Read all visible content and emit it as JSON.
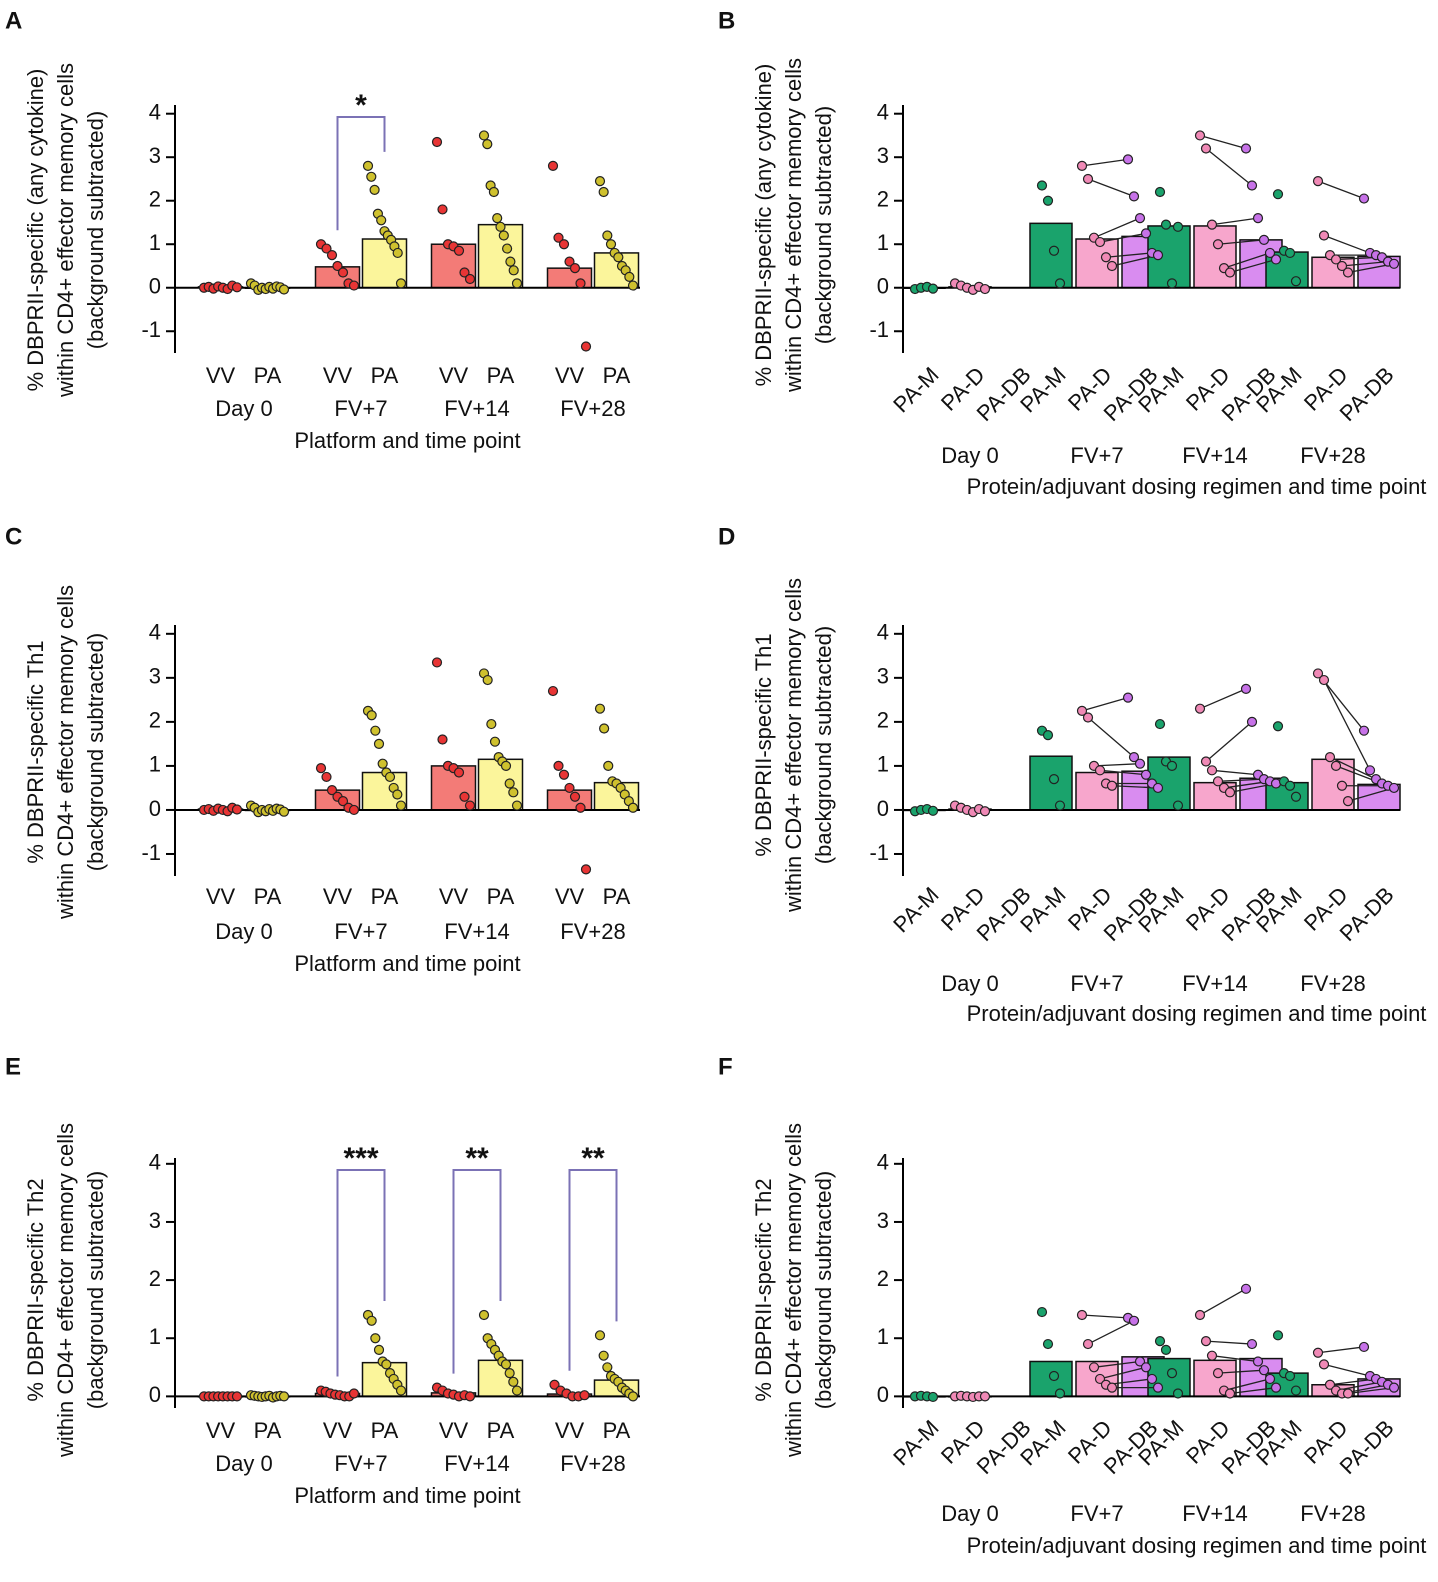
{
  "chart_data": [
    {
      "type": "bar",
      "panel": "A",
      "ylabel": [
        "% DBPRII-specific (any cytokine)",
        "within CD4+ effector memory cells",
        "(background subtracted)"
      ],
      "xlabel": "Platform and time point",
      "categories": [
        "VV",
        "PA",
        "VV",
        "PA",
        "VV",
        "PA",
        "VV",
        "PA"
      ],
      "time_points": [
        "Day 0",
        "FV+7",
        "FV+14",
        "FV+28"
      ],
      "values": [
        0.02,
        0.0,
        0.48,
        1.12,
        1.0,
        1.45,
        0.45,
        0.8
      ],
      "points": [
        [
          0,
          0.02,
          -0.02,
          0.03,
          0,
          -0.03,
          0.05,
          0.01
        ],
        [
          0.1,
          0.05,
          -0.05,
          0,
          -0.03,
          0.02,
          -0.02,
          0.03,
          0.01,
          -0.04
        ],
        [
          1.0,
          0.9,
          0.75,
          0.5,
          0.35,
          0.1,
          0.05
        ],
        [
          2.8,
          2.55,
          2.25,
          1.7,
          1.55,
          1.3,
          1.2,
          1.1,
          0.95,
          0.8,
          0.1
        ],
        [
          3.35,
          1.8,
          1.0,
          0.95,
          0.85,
          0.35,
          0.2
        ],
        [
          3.5,
          3.3,
          2.35,
          2.2,
          1.6,
          1.4,
          1.2,
          0.9,
          0.6,
          0.4,
          0.1
        ],
        [
          2.8,
          1.15,
          1.0,
          0.6,
          0.45,
          0.1,
          -1.35
        ],
        [
          2.45,
          2.2,
          1.2,
          1.0,
          0.8,
          0.7,
          0.5,
          0.4,
          0.25,
          0.05
        ]
      ],
      "colors": [
        "#f37b77",
        "#fbf59b",
        "#f37b77",
        "#fbf59b",
        "#f37b77",
        "#fbf59b",
        "#f37b77",
        "#fbf59b"
      ],
      "point_colors": [
        "#e83535",
        "#cfc12e",
        "#e83535",
        "#cfc12e",
        "#e83535",
        "#cfc12e",
        "#e83535",
        "#cfc12e"
      ],
      "ylim": [
        -1.5,
        4.2
      ],
      "yticks": [
        -1,
        0,
        1,
        2,
        3,
        4
      ],
      "annotations": [
        {
          "text": "*",
          "groups": [
            2,
            3
          ]
        }
      ]
    },
    {
      "type": "bar",
      "panel": "B",
      "ylabel": [
        "% DBPRII-specific (any cytokine)",
        "within CD4+ effector memory cells",
        "(background subtracted)"
      ],
      "xlabel": "Protein/adjuvant dosing regimen and time point",
      "categories": [
        "PA-M",
        "PA-D",
        "PA-DB",
        "PA-M",
        "PA-D",
        "PA-DB",
        "PA-M",
        "PA-D",
        "PA-DB",
        "PA-M",
        "PA-D",
        "PA-DB"
      ],
      "time_points": [
        "Day 0",
        "FV+7",
        "FV+14",
        "FV+28"
      ],
      "values": [
        0.0,
        0.02,
        null,
        1.48,
        1.12,
        1.18,
        1.42,
        1.42,
        1.1,
        0.82,
        0.7,
        0.72
      ],
      "points": [
        [
          -0.03,
          0,
          0.02,
          -0.02
        ],
        [
          0.1,
          0.05,
          0,
          -0.05,
          0.02,
          -0.03
        ],
        [],
        [
          2.35,
          2.0,
          0.85,
          0.1
        ],
        [
          2.8,
          2.5,
          1.15,
          1.05,
          0.7,
          0.5
        ],
        [
          2.95,
          2.1,
          1.6,
          1.25,
          0.8,
          0.75
        ],
        [
          2.2,
          1.45,
          0.1,
          1.4
        ],
        [
          3.5,
          3.2,
          1.45,
          1.0,
          0.45,
          0.35
        ],
        [
          3.2,
          2.35,
          1.6,
          1.1,
          0.8,
          0.65
        ],
        [
          2.15,
          0.85,
          0.8,
          0.15
        ],
        [
          2.45,
          1.2,
          0.75,
          0.65,
          0.5,
          0.35
        ],
        [
          2.05,
          0.8,
          0.75,
          0.7,
          0.6,
          0.55
        ]
      ],
      "colors": [
        "#1aa36c",
        "#f7a6cc",
        "#d98cf0",
        "#1aa36c",
        "#f7a6cc",
        "#d98cf0",
        "#1aa36c",
        "#f7a6cc",
        "#d98cf0",
        "#1aa36c",
        "#f7a6cc",
        "#d98cf0"
      ],
      "point_colors": [
        "#1aa36c",
        "#f089b6",
        "#c772e8",
        "#1aa36c",
        "#f089b6",
        "#c772e8",
        "#1aa36c",
        "#f089b6",
        "#c772e8",
        "#1aa36c",
        "#f089b6",
        "#c772e8"
      ],
      "ylim": [
        -1.5,
        4.2
      ],
      "yticks": [
        -1,
        0,
        1,
        2,
        3,
        4
      ],
      "connect_pairs": true
    },
    {
      "type": "bar",
      "panel": "C",
      "ylabel": [
        "% DBPRII-specific Th1",
        "within CD4+ effector memory cells",
        "(background subtracted)"
      ],
      "xlabel": "Platform and time point",
      "categories": [
        "VV",
        "PA",
        "VV",
        "PA",
        "VV",
        "PA",
        "VV",
        "PA"
      ],
      "time_points": [
        "Day 0",
        "FV+7",
        "FV+14",
        "FV+28"
      ],
      "values": [
        0.02,
        0.0,
        0.45,
        0.85,
        1.0,
        1.15,
        0.45,
        0.62
      ],
      "points": [
        [
          0,
          0.02,
          -0.02,
          0.03,
          0,
          -0.03,
          0.05,
          0.01
        ],
        [
          0.1,
          0.05,
          -0.05,
          0,
          -0.03,
          0.02,
          -0.02,
          0.03,
          0.01,
          -0.04
        ],
        [
          0.95,
          0.75,
          0.45,
          0.3,
          0.2,
          0.05,
          0.0
        ],
        [
          2.25,
          2.15,
          1.8,
          1.5,
          1.05,
          0.85,
          0.75,
          0.5,
          0.35,
          0.1
        ],
        [
          3.35,
          1.6,
          1.0,
          0.95,
          0.85,
          0.3,
          0.1
        ],
        [
          3.1,
          2.95,
          1.95,
          1.55,
          1.2,
          1.1,
          1.0,
          0.6,
          0.4,
          0.1
        ],
        [
          2.7,
          1.0,
          0.8,
          0.5,
          0.3,
          0.05,
          -1.35
        ],
        [
          2.3,
          1.85,
          1.0,
          0.65,
          0.6,
          0.5,
          0.35,
          0.2,
          0.05
        ]
      ],
      "colors": [
        "#f37b77",
        "#fbf59b",
        "#f37b77",
        "#fbf59b",
        "#f37b77",
        "#fbf59b",
        "#f37b77",
        "#fbf59b"
      ],
      "point_colors": [
        "#e83535",
        "#cfc12e",
        "#e83535",
        "#cfc12e",
        "#e83535",
        "#cfc12e",
        "#e83535",
        "#cfc12e"
      ],
      "ylim": [
        -1.5,
        4.2
      ],
      "yticks": [
        -1,
        0,
        1,
        2,
        3,
        4
      ]
    },
    {
      "type": "bar",
      "panel": "D",
      "ylabel": [
        "% DBPRII-specific Th1",
        "within CD4+ effector memory cells",
        "(background subtracted)"
      ],
      "xlabel": "Protein/adjuvant dosing regimen and time point",
      "categories": [
        "PA-M",
        "PA-D",
        "PA-DB",
        "PA-M",
        "PA-D",
        "PA-DB",
        "PA-M",
        "PA-D",
        "PA-DB",
        "PA-M",
        "PA-D",
        "PA-DB"
      ],
      "time_points": [
        "Day 0",
        "FV+7",
        "FV+14",
        "FV+28"
      ],
      "values": [
        0.0,
        0.02,
        null,
        1.22,
        0.85,
        0.88,
        1.2,
        0.62,
        0.72,
        0.62,
        1.15,
        0.58
      ],
      "points": [
        [
          -0.03,
          0,
          0.02,
          -0.02
        ],
        [
          0.1,
          0.05,
          0,
          -0.05,
          0.02,
          -0.03
        ],
        [],
        [
          1.8,
          1.7,
          0.7,
          0.1
        ],
        [
          2.25,
          2.1,
          1.0,
          0.9,
          0.6,
          0.55
        ],
        [
          2.55,
          1.2,
          1.05,
          0.8,
          0.6,
          0.5
        ],
        [
          1.95,
          1.1,
          1.0,
          0.1
        ],
        [
          2.3,
          1.1,
          0.9,
          0.65,
          0.5,
          0.4
        ],
        [
          2.75,
          2.0,
          0.8,
          0.7,
          0.65,
          0.6
        ],
        [
          1.9,
          0.65,
          0.55,
          0.3
        ],
        [
          3.1,
          2.95,
          1.2,
          1.0,
          0.55,
          0.2
        ],
        [
          1.8,
          0.9,
          0.7,
          0.6,
          0.55,
          0.5
        ]
      ],
      "colors": [
        "#1aa36c",
        "#f7a6cc",
        "#d98cf0",
        "#1aa36c",
        "#f7a6cc",
        "#d98cf0",
        "#1aa36c",
        "#f7a6cc",
        "#d98cf0",
        "#1aa36c",
        "#f7a6cc",
        "#d98cf0"
      ],
      "point_colors": [
        "#1aa36c",
        "#f089b6",
        "#c772e8",
        "#1aa36c",
        "#f089b6",
        "#c772e8",
        "#1aa36c",
        "#f089b6",
        "#c772e8",
        "#1aa36c",
        "#f089b6",
        "#c772e8"
      ],
      "ylim": [
        -1.5,
        4.2
      ],
      "yticks": [
        -1,
        0,
        1,
        2,
        3,
        4
      ],
      "connect_pairs": true
    },
    {
      "type": "bar",
      "panel": "E",
      "ylabel": [
        "% DBPRII-specific Th2",
        "within CD4+ effector memory cells",
        "(background subtracted)"
      ],
      "xlabel": "Platform and time point",
      "categories": [
        "VV",
        "PA",
        "VV",
        "PA",
        "VV",
        "PA",
        "VV",
        "PA"
      ],
      "time_points": [
        "Day 0",
        "FV+7",
        "FV+14",
        "FV+28"
      ],
      "values": [
        0.0,
        0.0,
        0.05,
        0.58,
        0.06,
        0.62,
        0.04,
        0.28
      ],
      "points": [
        [
          0,
          0,
          0,
          0,
          0,
          0,
          0,
          0
        ],
        [
          0.02,
          0.01,
          0,
          -0.01,
          0,
          0.01,
          -0.02,
          0,
          0.01,
          0
        ],
        [
          0.1,
          0.08,
          0.05,
          0.03,
          0.02,
          0.0,
          0.0,
          0.05
        ],
        [
          1.4,
          1.3,
          1.0,
          0.8,
          0.6,
          0.55,
          0.4,
          0.3,
          0.2,
          0.1
        ],
        [
          0.15,
          0.1,
          0.05,
          0.03,
          0.0,
          0.02,
          0.0
        ],
        [
          1.4,
          1.0,
          0.9,
          0.8,
          0.7,
          0.6,
          0.55,
          0.4,
          0.25,
          0.1
        ],
        [
          0.2,
          0.1,
          0.05,
          0.0,
          0.0,
          0.02
        ],
        [
          1.05,
          0.7,
          0.5,
          0.35,
          0.3,
          0.25,
          0.15,
          0.1,
          0.05,
          0
        ]
      ],
      "colors": [
        "#f37b77",
        "#fbf59b",
        "#f37b77",
        "#fbf59b",
        "#f37b77",
        "#fbf59b",
        "#f37b77",
        "#fbf59b"
      ],
      "point_colors": [
        "#e83535",
        "#cfc12e",
        "#e83535",
        "#cfc12e",
        "#e83535",
        "#cfc12e",
        "#e83535",
        "#cfc12e"
      ],
      "ylim": [
        -0.2,
        4.1
      ],
      "yticks": [
        0,
        1,
        2,
        3,
        4
      ],
      "annotations": [
        {
          "text": "***",
          "groups": [
            2,
            3
          ]
        },
        {
          "text": "**",
          "groups": [
            4,
            5
          ]
        },
        {
          "text": "**",
          "groups": [
            6,
            7
          ]
        }
      ]
    },
    {
      "type": "bar",
      "panel": "F",
      "ylabel": [
        "% DBPRII-specific Th2",
        "within CD4+ effector memory cells",
        "(background subtracted)"
      ],
      "xlabel": "Protein/adjuvant dosing regimen and time point",
      "categories": [
        "PA-M",
        "PA-D",
        "PA-DB",
        "PA-M",
        "PA-D",
        "PA-DB",
        "PA-M",
        "PA-D",
        "PA-DB",
        "PA-M",
        "PA-D",
        "PA-DB"
      ],
      "time_points": [
        "Day 0",
        "FV+7",
        "FV+14",
        "FV+28"
      ],
      "values": [
        0.0,
        0.0,
        null,
        0.6,
        0.6,
        0.68,
        0.65,
        0.62,
        0.65,
        0.4,
        0.2,
        0.3
      ],
      "points": [
        [
          0,
          0.01,
          0,
          -0.01
        ],
        [
          0,
          0.01,
          0,
          -0.01,
          0,
          0
        ],
        [],
        [
          1.45,
          0.9,
          0.35,
          0.05
        ],
        [
          1.4,
          0.9,
          0.5,
          0.3,
          0.2,
          0.15
        ],
        [
          1.35,
          1.3,
          0.6,
          0.5,
          0.3,
          0.15
        ],
        [
          0.95,
          0.8,
          0.4,
          0.05
        ],
        [
          1.4,
          0.95,
          0.7,
          0.4,
          0.1,
          0.05
        ],
        [
          1.85,
          0.9,
          0.6,
          0.45,
          0.3,
          0.15
        ],
        [
          1.05,
          0.4,
          0.35,
          0.1
        ],
        [
          0.75,
          0.55,
          0.2,
          0.1,
          0.05,
          0.05
        ],
        [
          0.85,
          0.35,
          0.3,
          0.25,
          0.2,
          0.15
        ]
      ],
      "colors": [
        "#1aa36c",
        "#f7a6cc",
        "#d98cf0",
        "#1aa36c",
        "#f7a6cc",
        "#d98cf0",
        "#1aa36c",
        "#f7a6cc",
        "#d98cf0",
        "#1aa36c",
        "#f7a6cc",
        "#d98cf0"
      ],
      "point_colors": [
        "#1aa36c",
        "#f089b6",
        "#c772e8",
        "#1aa36c",
        "#f089b6",
        "#c772e8",
        "#1aa36c",
        "#f089b6",
        "#c772e8",
        "#1aa36c",
        "#f089b6",
        "#c772e8"
      ],
      "ylim": [
        -0.2,
        4.1
      ],
      "yticks": [
        0,
        1,
        2,
        3,
        4
      ],
      "connect_pairs": true
    }
  ]
}
